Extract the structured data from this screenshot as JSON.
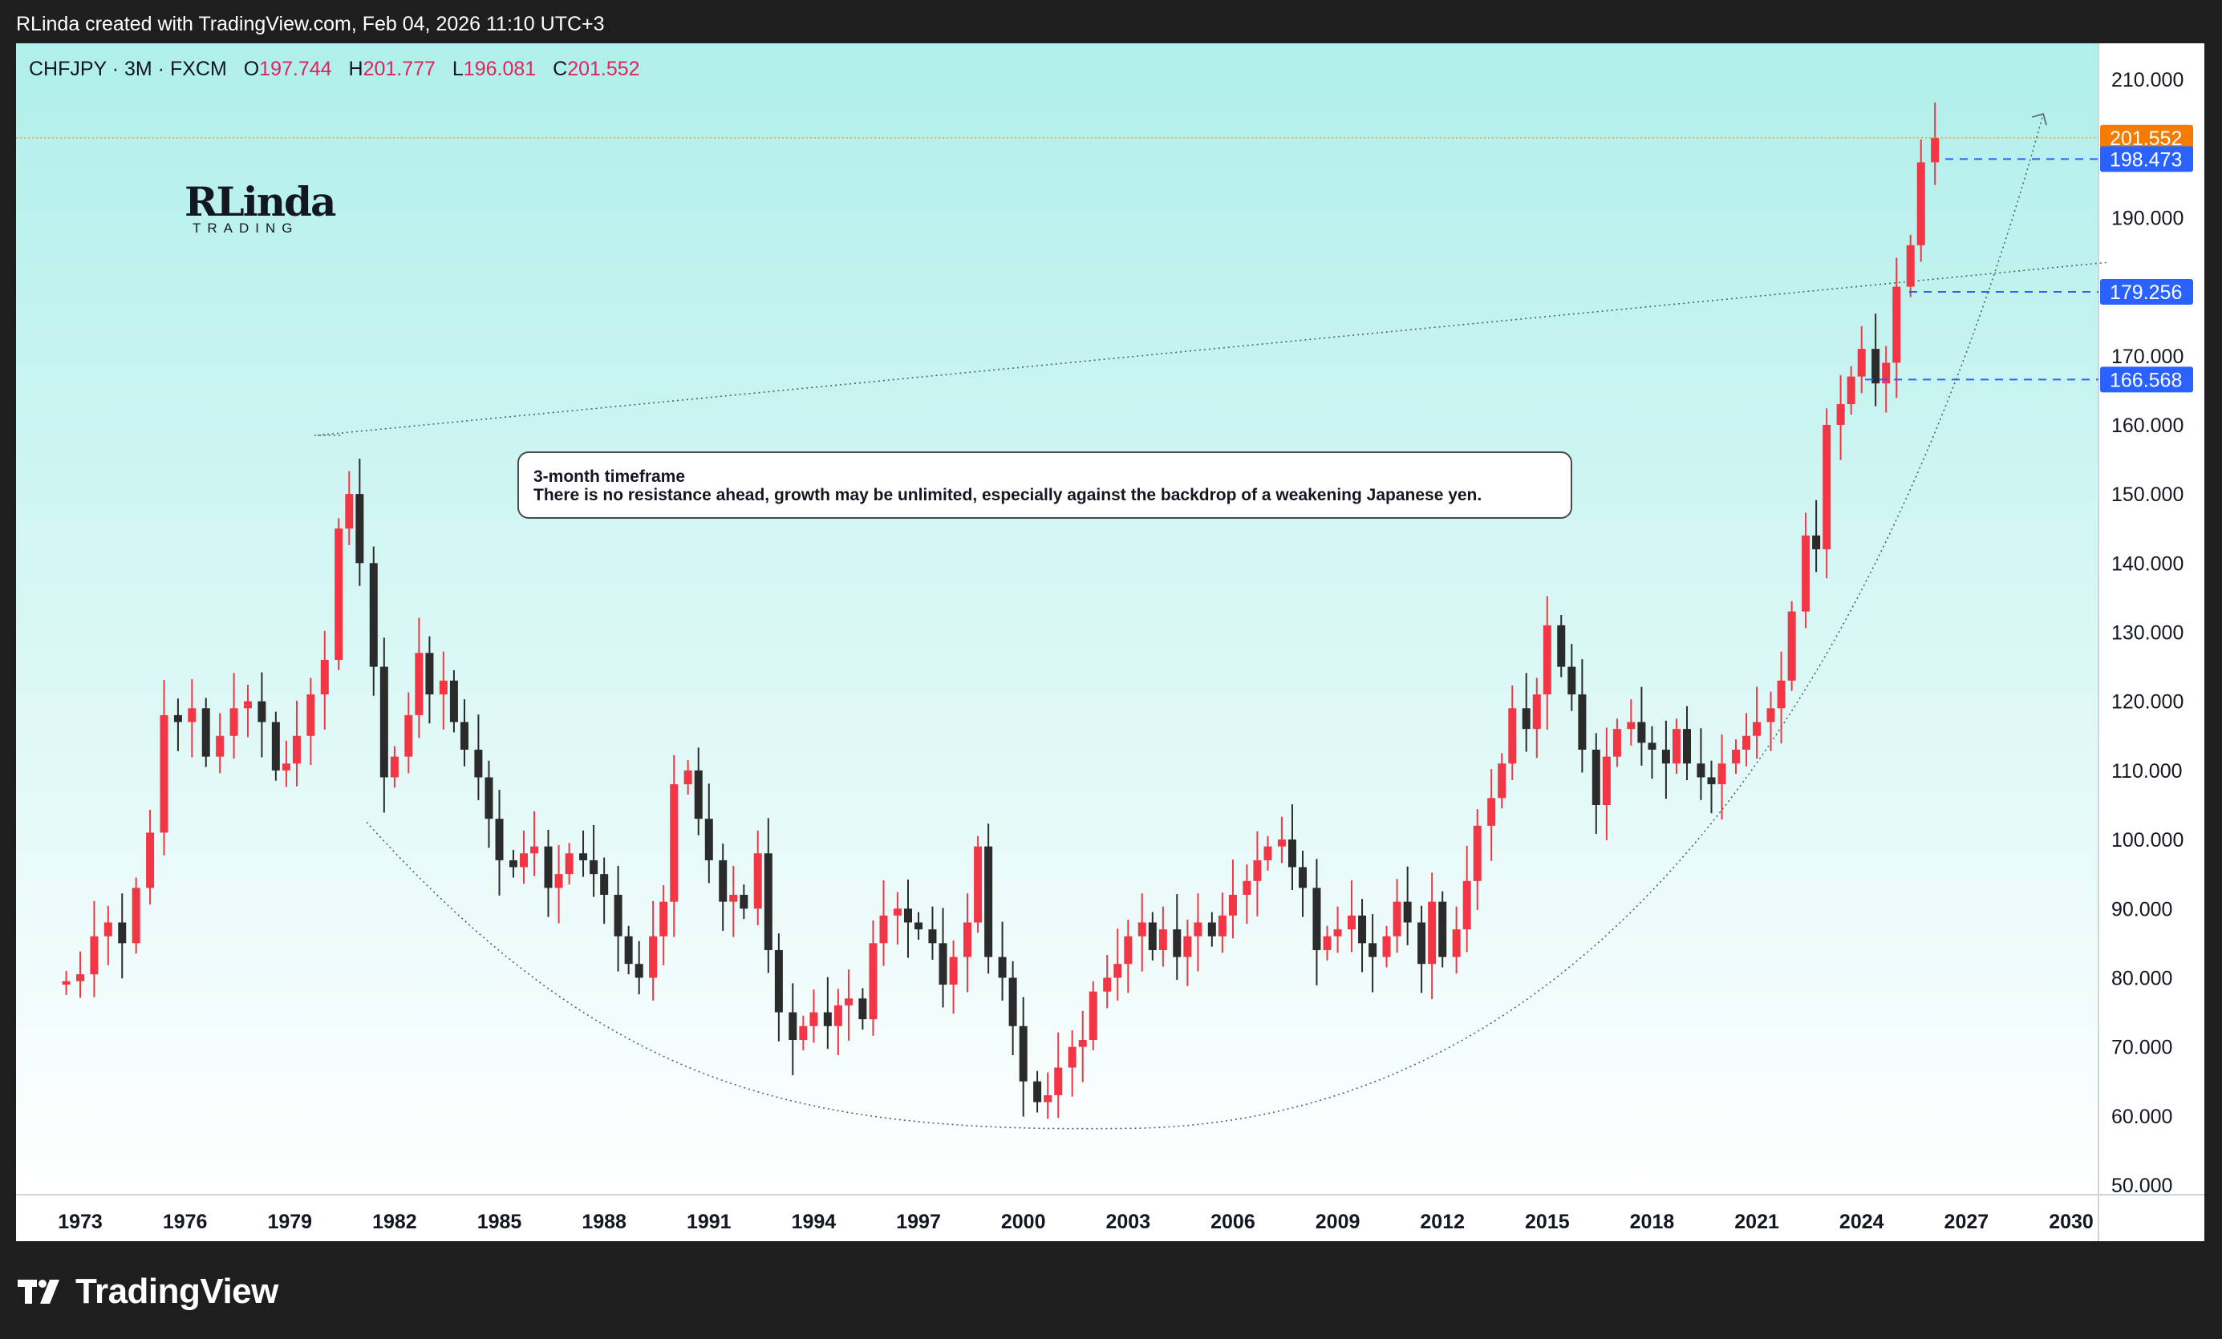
{
  "header": {
    "credit": "RLinda created with TradingView.com, Feb 04, 2026 11:10 UTC+3"
  },
  "legend": {
    "symbol": "CHFJPY · 3M · FXCM",
    "o_label": "O",
    "o": "197.744",
    "h_label": "H",
    "h": "201.777",
    "l_label": "L",
    "l": "196.081",
    "c_label": "C",
    "c": "201.552"
  },
  "watermark": {
    "main": "RLinda",
    "sub": "TRADING"
  },
  "annotation": {
    "title": "3-month timeframe",
    "body": "There is no resistance ahead, growth may be unlimited, especially against the backdrop of a weakening Japanese yen."
  },
  "footer": {
    "brand": "TradingView"
  },
  "colors": {
    "up": "#f23645",
    "down": "#2b2b2b",
    "bg_top": "#b0efea",
    "bg_bottom": "#ffffff",
    "tag_price": "#f57c00",
    "tag_level": "#2962ff",
    "dash_level": "#2962ff",
    "price_line": "#f5a623"
  },
  "chart_data": {
    "type": "candlestick",
    "symbol": "CHFJPY",
    "timeframe": "3M",
    "ylim": [
      50,
      210
    ],
    "yticks": [
      "210.000",
      "190.000",
      "170.000",
      "160.000",
      "150.000",
      "140.000",
      "130.000",
      "120.000",
      "110.000",
      "100.000",
      "90.000",
      "80.000",
      "70.000",
      "60.000",
      "50.000"
    ],
    "yticks_values": [
      210,
      190,
      170,
      160,
      150,
      140,
      130,
      120,
      110,
      100,
      90,
      80,
      70,
      60,
      50
    ],
    "x_years": [
      "1973",
      "1976",
      "1979",
      "1982",
      "1985",
      "1988",
      "1991",
      "1994",
      "1997",
      "2000",
      "2003",
      "2006",
      "2009",
      "2012",
      "2015",
      "2018",
      "2021",
      "2024",
      "2027",
      "2030"
    ],
    "xlim": [
      1971.2,
      2031.0
    ],
    "current_price": "201.552",
    "levels": [
      {
        "value": 198.473,
        "label": "198.473"
      },
      {
        "value": 179.256,
        "label": "179.256"
      },
      {
        "value": 166.568,
        "label": "166.568"
      }
    ],
    "trendline": {
      "from": [
        1979.8,
        158.5
      ],
      "to": [
        2031.0,
        183.5
      ]
    },
    "curve": {
      "start": [
        1981.2,
        102.5
      ],
      "bottom": [
        2003.0,
        58.2
      ],
      "end": [
        2029.2,
        205.0
      ]
    },
    "closes": [
      [
        1972.6,
        79.5
      ],
      [
        1973.0,
        80.5
      ],
      [
        1973.4,
        86
      ],
      [
        1973.8,
        88
      ],
      [
        1974.2,
        85
      ],
      [
        1974.6,
        93
      ],
      [
        1975.0,
        101
      ],
      [
        1975.4,
        118
      ],
      [
        1975.8,
        117
      ],
      [
        1976.2,
        119
      ],
      [
        1976.6,
        112
      ],
      [
        1977.0,
        115
      ],
      [
        1977.4,
        119
      ],
      [
        1977.8,
        120
      ],
      [
        1978.2,
        117
      ],
      [
        1978.6,
        110
      ],
      [
        1978.9,
        111
      ],
      [
        1979.2,
        115
      ],
      [
        1979.6,
        121
      ],
      [
        1980.0,
        126
      ],
      [
        1980.4,
        145
      ],
      [
        1980.7,
        150
      ],
      [
        1981.0,
        140
      ],
      [
        1981.4,
        125
      ],
      [
        1981.7,
        109
      ],
      [
        1982.0,
        112
      ],
      [
        1982.4,
        118
      ],
      [
        1982.7,
        127
      ],
      [
        1983.0,
        121
      ],
      [
        1983.4,
        123
      ],
      [
        1983.7,
        117
      ],
      [
        1984.0,
        113
      ],
      [
        1984.4,
        109
      ],
      [
        1984.7,
        103
      ],
      [
        1985.0,
        97
      ],
      [
        1985.4,
        96
      ],
      [
        1985.7,
        98
      ],
      [
        1986.0,
        99
      ],
      [
        1986.4,
        93
      ],
      [
        1986.7,
        95
      ],
      [
        1987.0,
        98
      ],
      [
        1987.4,
        97
      ],
      [
        1987.7,
        95
      ],
      [
        1988.0,
        92
      ],
      [
        1988.4,
        86
      ],
      [
        1988.7,
        82
      ],
      [
        1989.0,
        80
      ],
      [
        1989.4,
        86
      ],
      [
        1989.7,
        91
      ],
      [
        1990.0,
        108
      ],
      [
        1990.4,
        110
      ],
      [
        1990.7,
        103
      ],
      [
        1991.0,
        97
      ],
      [
        1991.4,
        91
      ],
      [
        1991.7,
        92
      ],
      [
        1992.0,
        90
      ],
      [
        1992.4,
        98
      ],
      [
        1992.7,
        84
      ],
      [
        1993.0,
        75
      ],
      [
        1993.4,
        71
      ],
      [
        1993.7,
        73
      ],
      [
        1994.0,
        75
      ],
      [
        1994.4,
        73
      ],
      [
        1994.7,
        76
      ],
      [
        1995.0,
        77
      ],
      [
        1995.4,
        74
      ],
      [
        1995.7,
        85
      ],
      [
        1996.0,
        89
      ],
      [
        1996.4,
        90
      ],
      [
        1996.7,
        88
      ],
      [
        1997.0,
        87
      ],
      [
        1997.4,
        85
      ],
      [
        1997.7,
        79
      ],
      [
        1998.0,
        83
      ],
      [
        1998.4,
        88
      ],
      [
        1998.7,
        99
      ],
      [
        1999.0,
        83
      ],
      [
        1999.4,
        80
      ],
      [
        1999.7,
        73
      ],
      [
        2000.0,
        65
      ],
      [
        2000.4,
        62
      ],
      [
        2000.7,
        63
      ],
      [
        2001.0,
        67
      ],
      [
        2001.4,
        70
      ],
      [
        2001.7,
        71
      ],
      [
        2002.0,
        78
      ],
      [
        2002.4,
        80
      ],
      [
        2002.7,
        82
      ],
      [
        2003.0,
        86
      ],
      [
        2003.4,
        88
      ],
      [
        2003.7,
        84
      ],
      [
        2004.0,
        87
      ],
      [
        2004.4,
        83
      ],
      [
        2004.7,
        86
      ],
      [
        2005.0,
        88
      ],
      [
        2005.4,
        86
      ],
      [
        2005.7,
        89
      ],
      [
        2006.0,
        92
      ],
      [
        2006.4,
        94
      ],
      [
        2006.7,
        97
      ],
      [
        2007.0,
        99
      ],
      [
        2007.4,
        100
      ],
      [
        2007.7,
        96
      ],
      [
        2008.0,
        93
      ],
      [
        2008.4,
        84
      ],
      [
        2008.7,
        86
      ],
      [
        2009.0,
        87
      ],
      [
        2009.4,
        89
      ],
      [
        2009.7,
        85
      ],
      [
        2010.0,
        83
      ],
      [
        2010.4,
        86
      ],
      [
        2010.7,
        91
      ],
      [
        2011.0,
        88
      ],
      [
        2011.4,
        82
      ],
      [
        2011.7,
        91
      ],
      [
        2012.0,
        83
      ],
      [
        2012.4,
        87
      ],
      [
        2012.7,
        94
      ],
      [
        2013.0,
        102
      ],
      [
        2013.4,
        106
      ],
      [
        2013.7,
        111
      ],
      [
        2014.0,
        119
      ],
      [
        2014.4,
        116
      ],
      [
        2014.7,
        121
      ],
      [
        2015.0,
        131
      ],
      [
        2015.4,
        125
      ],
      [
        2015.7,
        121
      ],
      [
        2016.0,
        113
      ],
      [
        2016.4,
        105
      ],
      [
        2016.7,
        112
      ],
      [
        2017.0,
        116
      ],
      [
        2017.4,
        117
      ],
      [
        2017.7,
        114
      ],
      [
        2018.0,
        113
      ],
      [
        2018.4,
        111
      ],
      [
        2018.7,
        116
      ],
      [
        2019.0,
        111
      ],
      [
        2019.4,
        109
      ],
      [
        2019.7,
        108
      ],
      [
        2020.0,
        111
      ],
      [
        2020.4,
        113
      ],
      [
        2020.7,
        115
      ],
      [
        2021.0,
        117
      ],
      [
        2021.4,
        119
      ],
      [
        2021.7,
        123
      ],
      [
        2022.0,
        133
      ],
      [
        2022.4,
        144
      ],
      [
        2022.7,
        142
      ],
      [
        2023.0,
        160
      ],
      [
        2023.4,
        163
      ],
      [
        2023.7,
        167
      ],
      [
        2024.0,
        171
      ],
      [
        2024.4,
        166
      ],
      [
        2024.7,
        169
      ],
      [
        2025.0,
        180
      ],
      [
        2025.4,
        186
      ],
      [
        2025.7,
        198
      ],
      [
        2026.1,
        201.552
      ]
    ]
  }
}
